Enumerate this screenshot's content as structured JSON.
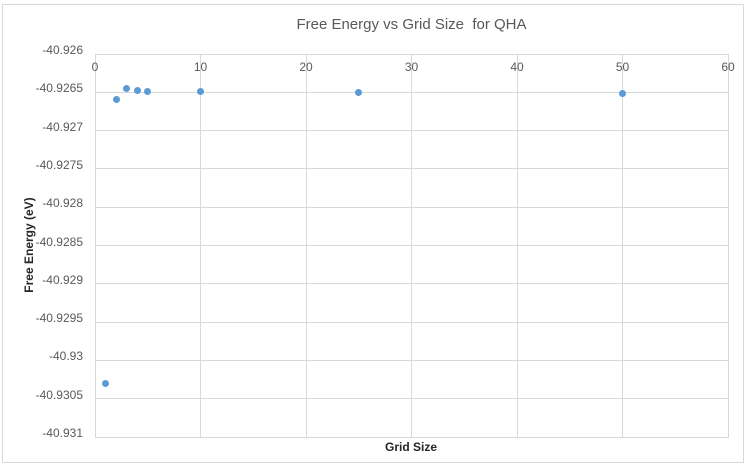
{
  "chart": {
    "title": "Free Energy vs Grid Size  for QHA",
    "x_axis_title": "Grid Size",
    "y_axis_title": "Free Energy (eV)"
  },
  "chart_data": {
    "type": "scatter",
    "title": "Free Energy vs Grid Size  for QHA",
    "xlabel": "Grid Size",
    "ylabel": "Free Energy (eV)",
    "x": [
      1,
      2,
      3,
      4,
      5,
      10,
      25,
      50
    ],
    "y": [
      -40.9303,
      -40.9266,
      -40.92645,
      -40.92647,
      -40.92649,
      -40.92649,
      -40.9265,
      -40.92651
    ],
    "xlim": [
      0,
      60
    ],
    "ylim": [
      -40.931,
      -40.926
    ],
    "xticks": [
      0,
      10,
      20,
      30,
      40,
      50,
      60
    ],
    "xtick_labels": [
      "0",
      "10",
      "20",
      "30",
      "40",
      "50",
      "60"
    ],
    "yticks": [
      -40.926,
      -40.9265,
      -40.927,
      -40.9275,
      -40.928,
      -40.9285,
      -40.929,
      -40.9295,
      -40.93,
      -40.9305,
      -40.931
    ],
    "ytick_labels": [
      "-40.926",
      "-40.9265",
      "-40.927",
      "-40.9275",
      "-40.928",
      "-40.9285",
      "-40.929",
      "-40.9295",
      "-40.93",
      "-40.9305",
      "-40.931"
    ],
    "grid": true,
    "legend": false,
    "series_name": "Free Energy",
    "marker_color": "#5B9BD5",
    "gridline_color": "#D9D9D9",
    "tick_label_color": "#595959",
    "title_color": "#595959",
    "axis_title_color": "#262626",
    "frame_border_color": "#D9D9D9",
    "background_color": "#FFFFFF"
  }
}
